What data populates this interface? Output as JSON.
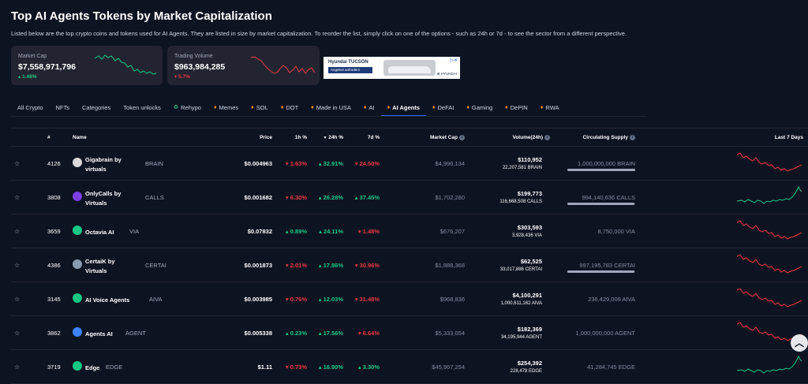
{
  "header": {
    "title": "Top AI Agents Tokens by Market Capitalization",
    "description": "Listed below are the top crypto coins and tokens used for AI Agents. They are listed in size by market capitalization. To reorder the list, simply click on one of the options - such as 24h or 7d - to see the sector from a different perspective."
  },
  "cards": [
    {
      "label": "Market Cap",
      "value": "$7,558,971,796",
      "change": "1.48%",
      "dir": "up"
    },
    {
      "label": "Trading Volume",
      "value": "$963,984,285",
      "change": "5.7%",
      "dir": "down"
    }
  ],
  "ad": {
    "brand": "Hyundai TUCSON",
    "cta": "Angebot anfordern",
    "logo": "⊞ HYUNDAI"
  },
  "tabs": [
    "All Crypto",
    "NFTs",
    "Categories",
    "Token unlocks",
    "Rehypo",
    "Memes",
    "SOL",
    "DOT",
    "Made in USA",
    "AI",
    "AI Agents",
    "DeFAI",
    "Gaming",
    "DePIN",
    "RWA"
  ],
  "columns": {
    "rank": "#",
    "name": "Name",
    "price": "Price",
    "h1": "1h %",
    "h24": "24h %",
    "d7": "7d %",
    "mcap": "Market Cap",
    "volume": "Volume(24h)",
    "supply": "Circulating Supply",
    "last7": "Last 7 Days"
  },
  "rows": [
    {
      "rank": "4126",
      "name1": "Gigabrain by",
      "name2": "virtuals",
      "symbol": "BRAIN",
      "price": "$0.004963",
      "h1": "1.63%",
      "h1d": "dn",
      "h24": "32.91%",
      "h24d": "up",
      "d7": "24.50%",
      "d7d": "dn",
      "mcap": "$4,996,134",
      "vol": "$110,952",
      "vol2": "22,207,581 BRAIN",
      "supply": "1,000,000,000 BRAIN",
      "supply_pct": 100,
      "color": "#d9d9d9",
      "trend": "dn"
    },
    {
      "rank": "3808",
      "name1": "OnlyCalls by",
      "name2": "Virtuals",
      "symbol": "CALLS",
      "price": "$0.001682",
      "h1": "6.30%",
      "h1d": "dn",
      "h24": "26.28%",
      "h24d": "up",
      "d7": "37.45%",
      "d7d": "up",
      "mcap": "$1,702,280",
      "vol": "$199,773",
      "vol2": "116,668,508 CALLS",
      "supply": "994,140,636 CALLS",
      "supply_pct": 99,
      "color": "#7b3fe4",
      "trend": "up"
    },
    {
      "rank": "3659",
      "name1": "Octavia AI",
      "name2": "",
      "symbol": "VIA",
      "price": "$0.07832",
      "h1": "0.89%",
      "h1d": "up",
      "h24": "24.11%",
      "h24d": "up",
      "d7": "1.48%",
      "d7d": "dn",
      "mcap": "$676,207",
      "vol": "$303,593",
      "vol2": "3,928,436 VIA",
      "supply": "8,750,000 VIA",
      "supply_pct": 0,
      "color": "#16c784",
      "trend": "dn"
    },
    {
      "rank": "4386",
      "name1": "CertaiK by",
      "name2": "Virtuals",
      "symbol": "CERTAI",
      "price": "$0.001873",
      "h1": "2.01%",
      "h1d": "dn",
      "h24": "17.86%",
      "h24d": "up",
      "d7": "30.96%",
      "d7d": "dn",
      "mcap": "$1,888,368",
      "vol": "$62,525",
      "vol2": "33,017,886 CERTAI",
      "supply": "997,195,783 CERTAI",
      "supply_pct": 99,
      "color": "#8a9bb0",
      "trend": "dn"
    },
    {
      "rank": "3145",
      "name1": "AI Voice Agents",
      "name2": "",
      "symbol": "AIVA",
      "price": "$0.003985",
      "h1": "0.76%",
      "h1d": "dn",
      "h24": "12.03%",
      "h24d": "up",
      "d7": "31.48%",
      "d7d": "dn",
      "mcap": "$968,836",
      "vol": "$4,100,291",
      "vol2": "1,000,611,162 AIVA",
      "supply": "236,429,009 AIVA",
      "supply_pct": 0,
      "color": "#16c784",
      "trend": "dn"
    },
    {
      "rank": "3862",
      "name1": "Agents AI",
      "name2": "",
      "symbol": "AGENT",
      "price": "$0.005338",
      "h1": "0.23%",
      "h1d": "up",
      "h24": "17.56%",
      "h24d": "up",
      "d7": "6.64%",
      "d7d": "dn",
      "mcap": "$5,333,054",
      "vol": "$182,369",
      "vol2": "34,195,944 AGENT",
      "supply": "1,000,000,000 AGENT",
      "supply_pct": 0,
      "color": "#3b82f6",
      "trend": "dn"
    },
    {
      "rank": "3719",
      "name1": "Edge",
      "name2": "",
      "symbol": "EDGE",
      "price": "$1.11",
      "h1": "0.73%",
      "h1d": "dn",
      "h24": "16.90%",
      "h24d": "up",
      "d7": "3.30%",
      "d7d": "up",
      "mcap": "$45,967,254",
      "vol": "$254,392",
      "vol2": "228,478 EDGE",
      "supply": "41,284,745 EDGE",
      "supply_pct": 0,
      "color": "#16c784",
      "trend": "up"
    }
  ]
}
